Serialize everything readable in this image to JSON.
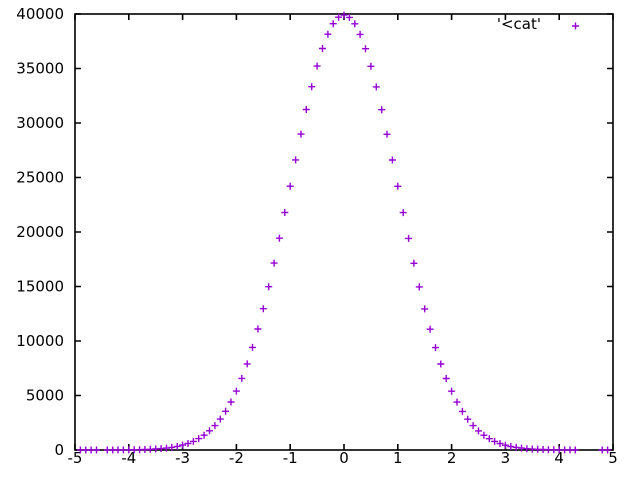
{
  "window": {
    "background": "#ffffff",
    "foreground": "#000000"
  },
  "chart_data": {
    "type": "scatter",
    "title": "",
    "xlabel": "",
    "ylabel": "",
    "xlim": [
      -5,
      5
    ],
    "ylim": [
      0,
      40000
    ],
    "grid": false,
    "marker_style": "plus",
    "legend": {
      "label": "'<cat'",
      "position": "top-right-inside",
      "marker": "plus-icon",
      "color": "#9400d3"
    },
    "x_ticks": [
      {
        "v": -5,
        "label": "-5"
      },
      {
        "v": -4,
        "label": "-4"
      },
      {
        "v": -3,
        "label": "-3"
      },
      {
        "v": -2,
        "label": "-2"
      },
      {
        "v": -1,
        "label": "-1"
      },
      {
        "v": 0,
        "label": "0"
      },
      {
        "v": 1,
        "label": "1"
      },
      {
        "v": 2,
        "label": "2"
      },
      {
        "v": 3,
        "label": "3"
      },
      {
        "v": 4,
        "label": "4"
      },
      {
        "v": 5,
        "label": "5"
      }
    ],
    "y_ticks": [
      {
        "v": 0,
        "label": "0"
      },
      {
        "v": 5000,
        "label": "5000"
      },
      {
        "v": 10000,
        "label": "10000"
      },
      {
        "v": 15000,
        "label": "15000"
      },
      {
        "v": 20000,
        "label": "20000"
      },
      {
        "v": 25000,
        "label": "25000"
      },
      {
        "v": 30000,
        "label": "30000"
      },
      {
        "v": 35000,
        "label": "35000"
      },
      {
        "v": 40000,
        "label": "40000"
      }
    ],
    "series": [
      {
        "name": "'<cat'",
        "color": "#9400d3",
        "marker": "plus",
        "points": [
          [
            -4.9,
            1
          ],
          [
            -4.8,
            1
          ],
          [
            -4.7,
            1
          ],
          [
            -4.6,
            2
          ],
          [
            -4.4,
            2
          ],
          [
            -4.3,
            3
          ],
          [
            -4.2,
            5
          ],
          [
            -4.1,
            8
          ],
          [
            -4.0,
            13
          ],
          [
            -3.9,
            20
          ],
          [
            -3.8,
            29
          ],
          [
            -3.7,
            42
          ],
          [
            -3.6,
            61
          ],
          [
            -3.5,
            88
          ],
          [
            -3.4,
            124
          ],
          [
            -3.3,
            171
          ],
          [
            -3.2,
            239
          ],
          [
            -3.1,
            327
          ],
          [
            -3.0,
            445
          ],
          [
            -2.9,
            597
          ],
          [
            -2.8,
            793
          ],
          [
            -2.7,
            1046
          ],
          [
            -2.6,
            1361
          ],
          [
            -2.5,
            1757
          ],
          [
            -2.4,
            2243
          ],
          [
            -2.3,
            2837
          ],
          [
            -2.2,
            3552
          ],
          [
            -2.1,
            4403
          ],
          [
            -2.0,
            5404
          ],
          [
            -1.9,
            6568
          ],
          [
            -1.8,
            7901
          ],
          [
            -1.7,
            9412
          ],
          [
            -1.6,
            11099
          ],
          [
            -1.5,
            12959
          ],
          [
            -1.4,
            14981
          ],
          [
            -1.3,
            17144
          ],
          [
            -1.2,
            19428
          ],
          [
            -1.1,
            21793
          ],
          [
            -1.0,
            24205
          ],
          [
            -0.9,
            26617
          ],
          [
            -0.8,
            28978
          ],
          [
            -0.7,
            31234
          ],
          [
            -0.6,
            33331
          ],
          [
            -0.5,
            35216
          ],
          [
            -0.4,
            36835
          ],
          [
            -0.3,
            38146
          ],
          [
            -0.2,
            39113
          ],
          [
            -0.1,
            39702
          ],
          [
            0.0,
            39900
          ],
          [
            0.1,
            39688
          ],
          [
            0.2,
            39097
          ],
          [
            0.3,
            38131
          ],
          [
            0.4,
            36819
          ],
          [
            0.5,
            35198
          ],
          [
            0.6,
            33313
          ],
          [
            0.7,
            31216
          ],
          [
            0.8,
            28960
          ],
          [
            0.9,
            26601
          ],
          [
            1.0,
            24189
          ],
          [
            1.1,
            21777
          ],
          [
            1.2,
            19410
          ],
          [
            1.3,
            17129
          ],
          [
            1.4,
            14965
          ],
          [
            1.5,
            12945
          ],
          [
            1.6,
            11085
          ],
          [
            1.7,
            9398
          ],
          [
            1.8,
            7889
          ],
          [
            1.9,
            6556
          ],
          [
            2.0,
            5394
          ],
          [
            2.1,
            4393
          ],
          [
            2.2,
            3542
          ],
          [
            2.3,
            2829
          ],
          [
            2.4,
            2235
          ],
          [
            2.5,
            1749
          ],
          [
            2.6,
            1355
          ],
          [
            2.7,
            1038
          ],
          [
            2.8,
            788
          ],
          [
            2.9,
            593
          ],
          [
            3.0,
            441
          ],
          [
            3.1,
            324
          ],
          [
            3.2,
            237
          ],
          [
            3.3,
            170
          ],
          [
            3.4,
            122
          ],
          [
            3.5,
            86
          ],
          [
            3.6,
            60
          ],
          [
            3.7,
            42
          ],
          [
            3.8,
            28
          ],
          [
            3.9,
            19
          ],
          [
            4.0,
            12
          ],
          [
            4.1,
            8
          ],
          [
            4.2,
            6
          ],
          [
            4.3,
            4
          ],
          [
            4.8,
            1
          ],
          [
            4.9,
            1
          ]
        ]
      }
    ]
  }
}
